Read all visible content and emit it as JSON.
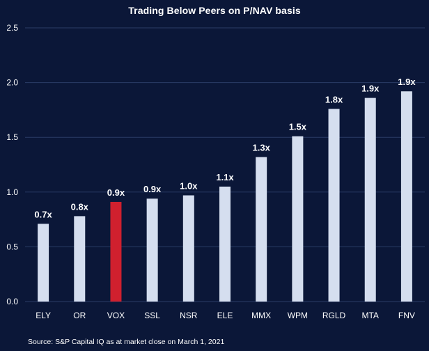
{
  "chart_data": {
    "type": "bar",
    "title": "Trading Below Peers on P/NAV basis",
    "xlabel": "",
    "ylabel": "",
    "ylim": [
      0,
      2.5
    ],
    "yticks": [
      "0.0",
      "0.5",
      "1.0",
      "1.5",
      "2.0",
      "2.5"
    ],
    "ytick_values": [
      0,
      0.5,
      1.0,
      1.5,
      2.0,
      2.5
    ],
    "grid": true,
    "legend": "none",
    "categories": [
      "ELY",
      "OR",
      "VOX",
      "SSL",
      "NSR",
      "ELE",
      "MMX",
      "WPM",
      "RGLD",
      "MTA",
      "FNV"
    ],
    "values": [
      0.71,
      0.78,
      0.91,
      0.94,
      0.97,
      1.05,
      1.32,
      1.51,
      1.76,
      1.86,
      1.92
    ],
    "data_labels": [
      "0.7x",
      "0.8x",
      "0.9x",
      "0.9x",
      "1.0x",
      "1.1x",
      "1.3x",
      "1.5x",
      "1.8x",
      "1.9x",
      "1.9x"
    ],
    "highlight_category": "VOX",
    "colors": {
      "background": "#0b1738",
      "bar": "#d5deef",
      "highlight": "#d0202e",
      "grid": "#2b3c66",
      "text": "#ffffff"
    }
  },
  "footer": {
    "source": "Source: S&P Capital IQ as at market close on March 1, 2021"
  }
}
